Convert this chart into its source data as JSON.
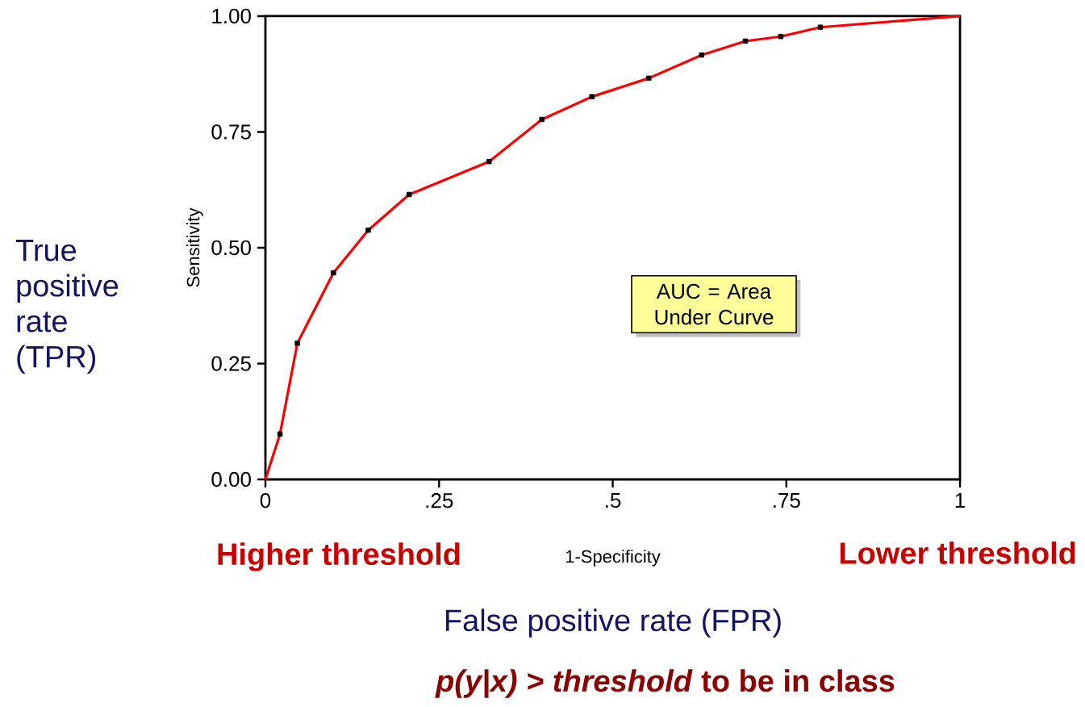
{
  "chart_data": {
    "type": "line",
    "xlabel": "1-Specificity",
    "ylabel": "Sensitivity",
    "xlim": [
      0,
      1
    ],
    "ylim": [
      0,
      1
    ],
    "xticks": [
      0,
      {
        "value": 0.25,
        "label": ".25"
      },
      {
        "value": 0.5,
        "label": ".5"
      },
      {
        "value": 0.75,
        "label": ".75"
      },
      1
    ],
    "yticks": [
      {
        "value": 0,
        "label": "0.00"
      },
      {
        "value": 0.25,
        "label": "0.25"
      },
      {
        "value": 0.5,
        "label": "0.50"
      },
      {
        "value": 0.75,
        "label": "0.75"
      },
      {
        "value": 1,
        "label": "1.00"
      }
    ],
    "series": [
      {
        "color": "#ff0000",
        "x": [
          0,
          0.021,
          0.046,
          0.098,
          0.148,
          0.207,
          0.322,
          0.398,
          0.47,
          0.552,
          0.628,
          0.691,
          0.742,
          0.799,
          1
        ],
        "values": [
          0,
          0.098,
          0.294,
          0.446,
          0.538,
          0.615,
          0.686,
          0.777,
          0.826,
          0.866,
          0.916,
          0.946,
          0.956,
          0.976,
          1
        ]
      },
      {
        "type": "scatter",
        "marker": "square",
        "color": "#000000",
        "x": [
          0.021,
          0.046,
          0.098,
          0.148,
          0.207,
          0.322,
          0.398,
          0.47,
          0.552,
          0.628,
          0.691,
          0.742,
          0.799
        ],
        "values": [
          0.098,
          0.294,
          0.446,
          0.538,
          0.615,
          0.686,
          0.777,
          0.826,
          0.866,
          0.916,
          0.946,
          0.956,
          0.976
        ]
      }
    ],
    "annotations": [
      "True positive rate (TPR)",
      "AUC = Area Under Curve",
      "Higher threshold",
      "Lower threshold",
      "False positive rate (FPR)",
      "*p(y|x) > threshold* to be in class"
    ]
  }
}
